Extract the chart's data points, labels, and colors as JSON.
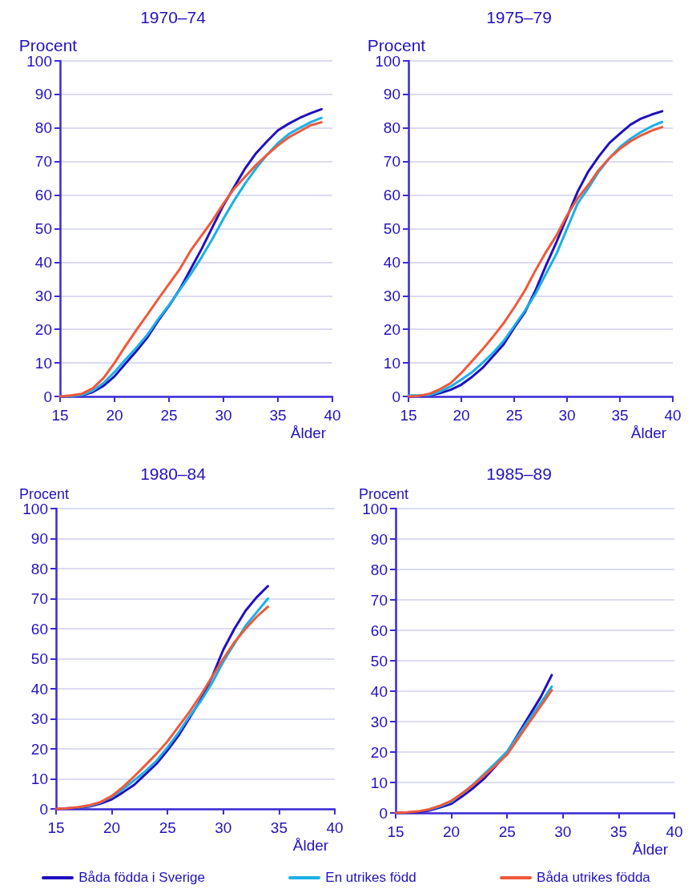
{
  "chart_data": [
    {
      "type": "line",
      "title": "1970–74",
      "xlabel": "Ålder",
      "ylabel": "Procent",
      "x": [
        15,
        16,
        17,
        18,
        19,
        20,
        21,
        22,
        23,
        24,
        25,
        26,
        27,
        28,
        29,
        30,
        31,
        32,
        33,
        34,
        35,
        36,
        37,
        38,
        39
      ],
      "xlim": [
        15,
        40
      ],
      "xticks": [
        15,
        20,
        25,
        30,
        35,
        40
      ],
      "ylim": [
        0,
        100
      ],
      "yticks": [
        0,
        10,
        20,
        30,
        40,
        50,
        60,
        70,
        80,
        90,
        100
      ],
      "grid": "y",
      "legend": false,
      "marker": "none",
      "line_style": "solid",
      "series": [
        {
          "color": "#2010bf",
          "values": [
            0,
            0.1,
            0.3,
            1.3,
            3.2,
            6,
            9.8,
            13.5,
            17.5,
            22.5,
            27,
            32,
            38,
            44,
            50.5,
            57,
            62.5,
            68,
            72.5,
            76,
            79.3,
            81.3,
            83,
            84.4,
            85.6
          ]
        },
        {
          "color": "#1ab0e8",
          "values": [
            0,
            0.1,
            0.4,
            1.7,
            4,
            7.3,
            11,
            14.5,
            18.3,
            23,
            27.2,
            31.8,
            36.5,
            41.5,
            47,
            53,
            58.5,
            63.5,
            68,
            72,
            75.5,
            78.2,
            80,
            81.7,
            83
          ]
        },
        {
          "color": "#f0583a",
          "values": [
            0,
            0.3,
            0.8,
            2.4,
            5.5,
            10,
            15,
            19.8,
            24.3,
            29,
            33.5,
            38,
            43.5,
            48,
            52.5,
            57.5,
            62,
            65.5,
            69,
            72,
            74.8,
            77.2,
            79,
            80.8,
            81.7
          ]
        }
      ]
    },
    {
      "type": "line",
      "title": "1975–79",
      "xlabel": "Ålder",
      "ylabel": "Procent",
      "x": [
        15,
        16,
        17,
        18,
        19,
        20,
        21,
        22,
        23,
        24,
        25,
        26,
        27,
        28,
        29,
        30,
        31,
        32,
        33,
        34,
        35,
        36,
        37,
        38,
        39
      ],
      "xlim": [
        15,
        40
      ],
      "xticks": [
        15,
        20,
        25,
        30,
        35,
        40
      ],
      "ylim": [
        0,
        100
      ],
      "yticks": [
        0,
        10,
        20,
        30,
        40,
        50,
        60,
        70,
        80,
        90,
        100
      ],
      "grid": "y",
      "legend": false,
      "marker": "none",
      "line_style": "solid",
      "series": [
        {
          "color": "#2010bf",
          "values": [
            0,
            0.1,
            0.3,
            1,
            2,
            3.5,
            5.8,
            8.5,
            12,
            15.5,
            20.5,
            25,
            31.5,
            39,
            46,
            53.5,
            61,
            67,
            71.5,
            75.5,
            78.3,
            81,
            82.8,
            84,
            85
          ]
        },
        {
          "color": "#1ab0e8",
          "values": [
            0.3,
            0.3,
            0.4,
            1.5,
            3,
            5,
            7.2,
            10,
            13,
            16.5,
            21,
            25.5,
            30.5,
            36.5,
            42.5,
            50,
            57.5,
            62,
            67,
            71,
            74.3,
            76.8,
            78.8,
            80.5,
            81.8
          ]
        },
        {
          "color": "#f0583a",
          "values": [
            0,
            0.2,
            0.8,
            2.2,
            4,
            7,
            10.5,
            14,
            17.8,
            21.8,
            26.5,
            31.5,
            37.5,
            43,
            48,
            54,
            59,
            63,
            67.5,
            71,
            73.8,
            76,
            77.8,
            79.2,
            80.3
          ]
        }
      ]
    },
    {
      "type": "line",
      "title": "1980–84",
      "xlabel": "Ålder",
      "ylabel": "Procent",
      "x": [
        15,
        16,
        17,
        18,
        19,
        20,
        21,
        22,
        23,
        24,
        25,
        26,
        27,
        28,
        29,
        30,
        31,
        32,
        33,
        34
      ],
      "xlim": [
        15,
        40
      ],
      "xticks": [
        15,
        20,
        25,
        30,
        35,
        40
      ],
      "ylim": [
        0,
        100
      ],
      "yticks": [
        0,
        10,
        20,
        30,
        40,
        50,
        60,
        70,
        80,
        90,
        100
      ],
      "grid": "y",
      "legend": false,
      "marker": "none",
      "line_style": "solid",
      "series": [
        {
          "color": "#2010bf",
          "values": [
            0,
            0.2,
            0.4,
            0.8,
            1.8,
            3.2,
            5.5,
            8,
            11.5,
            15,
            19.5,
            24.5,
            30.5,
            36.5,
            44,
            53,
            60,
            66,
            70.5,
            74.2
          ]
        },
        {
          "color": "#1ab0e8",
          "values": [
            null,
            null,
            0.5,
            1,
            2.2,
            4,
            6.5,
            9.5,
            12.5,
            16,
            20.5,
            25.5,
            31,
            36,
            42,
            49,
            55,
            61,
            65.5,
            70
          ]
        },
        {
          "color": "#f0583a",
          "values": [
            0,
            0.2,
            0.6,
            1.2,
            2.3,
            4.3,
            7.3,
            10.8,
            14.5,
            18.3,
            22.5,
            27.5,
            32.5,
            38,
            44,
            50,
            55.5,
            60,
            64,
            67.3
          ]
        }
      ]
    },
    {
      "type": "line",
      "title": "1985–89",
      "xlabel": "Ålder",
      "ylabel": "Procent",
      "x": [
        15,
        16,
        17,
        18,
        19,
        20,
        21,
        22,
        23,
        24,
        25,
        26,
        27,
        28,
        29
      ],
      "xlim": [
        15,
        40
      ],
      "xticks": [
        15,
        20,
        25,
        30,
        35,
        40
      ],
      "ylim": [
        0,
        100
      ],
      "yticks": [
        0,
        10,
        20,
        30,
        40,
        50,
        60,
        70,
        80,
        90,
        100
      ],
      "grid": "y",
      "legend": "bottom",
      "marker": "none",
      "line_style": "solid",
      "series": [
        {
          "name": "Båda födda i Sverige",
          "color": "#2010bf",
          "values": [
            0,
            0.1,
            0.3,
            0.8,
            1.8,
            3,
            5.5,
            8.3,
            11.5,
            15.5,
            20,
            26,
            32,
            38,
            45.3
          ]
        },
        {
          "name": "En utrikes född",
          "color": "#1ab0e8",
          "values": [
            null,
            null,
            null,
            1.1,
            2.2,
            3.7,
            6.5,
            9.5,
            13,
            16.5,
            20.2,
            25.5,
            30.8,
            36,
            41.5
          ]
        },
        {
          "name": "Båda utrikes födda",
          "color": "#f0583a",
          "values": [
            0,
            0.2,
            0.5,
            1.2,
            2.4,
            4,
            6.5,
            9.3,
            12.5,
            15.7,
            19.2,
            24.5,
            29.8,
            35,
            40.3
          ]
        }
      ]
    }
  ]
}
